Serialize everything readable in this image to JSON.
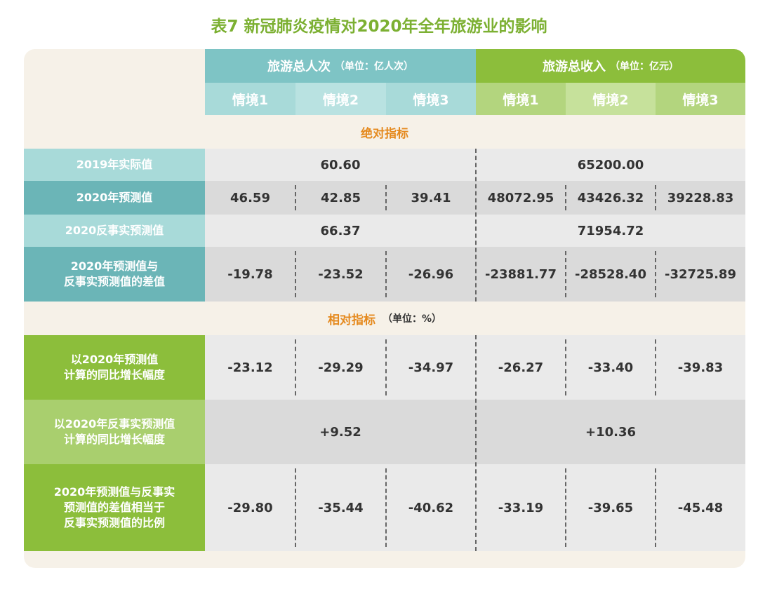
{
  "title": "表7 新冠肺炎疫情对2020年全年旅游业的影响",
  "header": {
    "group1": {
      "label": "旅游总人次",
      "unit": "（单位：亿人次）"
    },
    "group2": {
      "label": "旅游总收入",
      "unit": "（单位：亿元）"
    },
    "scenarios": [
      "情境1",
      "情境2",
      "情境3",
      "情境1",
      "情境2",
      "情境3"
    ]
  },
  "section_absolute": {
    "title": "绝对指标"
  },
  "section_relative": {
    "title": "相对指标",
    "unit": "（单位：%）"
  },
  "rows": {
    "r2019": {
      "label": "2019年实际值",
      "trips": "60.60",
      "revenue": "65200.00"
    },
    "r2020": {
      "label": "2020年预测值",
      "values": [
        "46.59",
        "42.85",
        "39.41",
        "48072.95",
        "43426.32",
        "39228.83"
      ]
    },
    "rcf": {
      "label": "2020反事实预测值",
      "trips": "66.37",
      "revenue": "71954.72"
    },
    "rdiff": {
      "label_line1": "2020年预测值与",
      "label_line2": "反事实预测值的差值",
      "values": [
        "-19.78",
        "-23.52",
        "-26.96",
        "-23881.77",
        "-28528.40",
        "-32725.89"
      ]
    },
    "rgrowth": {
      "label_line1": "以2020年预测值",
      "label_line2": "计算的同比增长幅度",
      "values": [
        "-23.12",
        "-29.29",
        "-34.97",
        "-26.27",
        "-33.40",
        "-39.83"
      ]
    },
    "rcfgrowth": {
      "label_line1": "以2020年反事实预测值",
      "label_line2": "计算的同比增长幅度",
      "trips": "+9.52",
      "revenue": "+10.36"
    },
    "rratio": {
      "label_line1": "2020年预测值与反事实",
      "label_line2": "预测值的差值相当于",
      "label_line3": "反事实预测值的比例",
      "values": [
        "-29.80",
        "-35.44",
        "-40.62",
        "-33.19",
        "-39.65",
        "-45.48"
      ]
    }
  },
  "colors": {
    "title": "#7cb032",
    "teal_header": "#7ec4c5",
    "green_header": "#8cbe3b",
    "section_title": "#e58a1f",
    "label_teal_light": "#a8dad9",
    "label_teal_dark": "#6bb5b7",
    "label_green_dark": "#8cbe3b",
    "label_green_light": "#a9cf6e"
  }
}
